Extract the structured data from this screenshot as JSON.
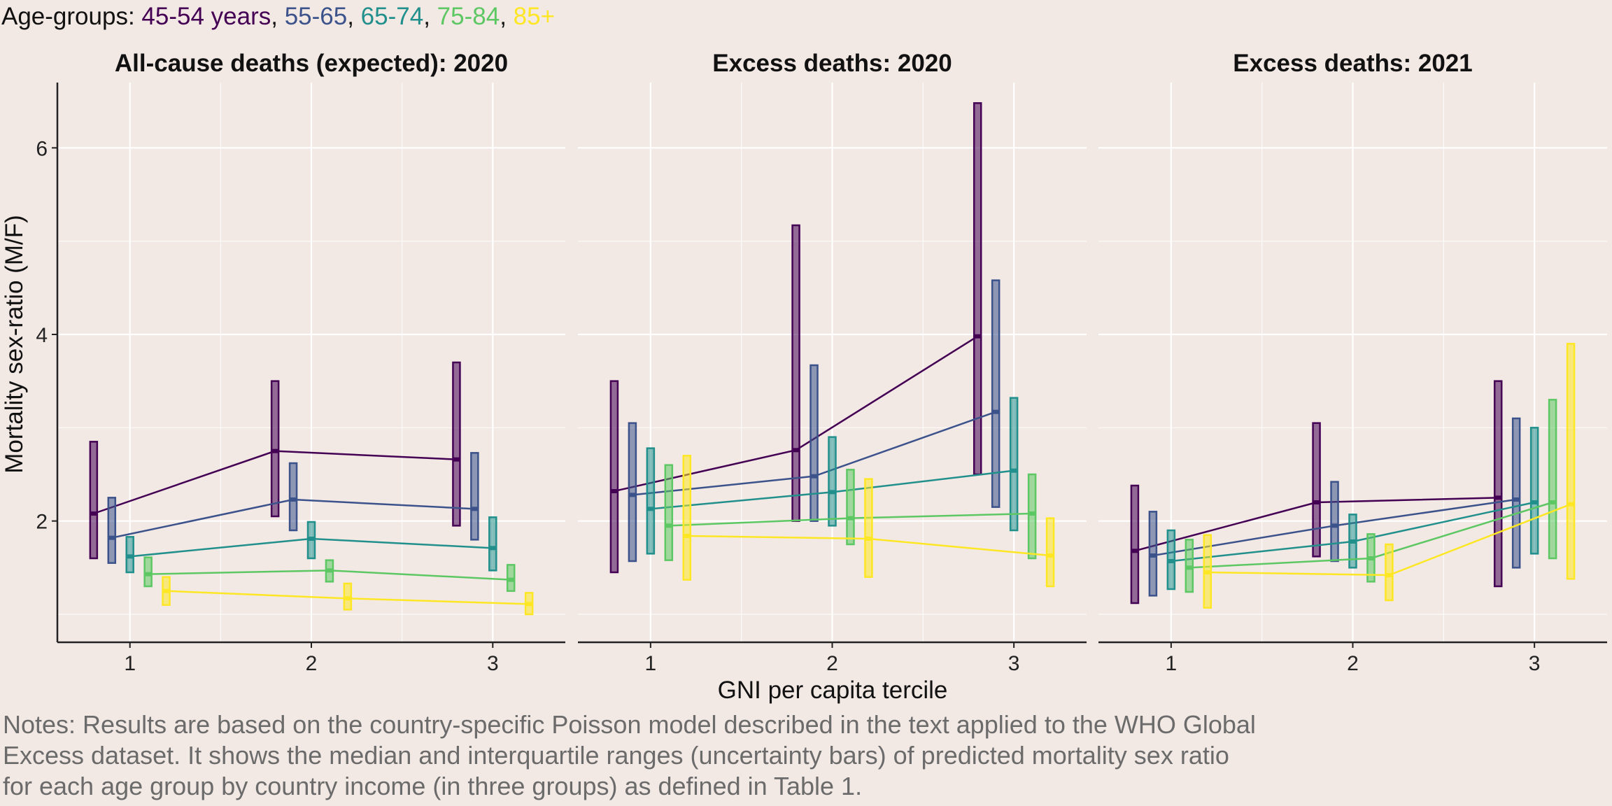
{
  "legend": {
    "label": "Age-groups: ",
    "groups": [
      {
        "text": "45-54 years",
        "color": "#440154"
      },
      {
        "text": "55-65",
        "color": "#3B528B"
      },
      {
        "text": "65-74",
        "color": "#21908C"
      },
      {
        "text": "75-84",
        "color": "#5DC863"
      },
      {
        "text": "85+",
        "color": "#FDE725"
      }
    ]
  },
  "notes": {
    "lines": [
      "Notes: Results are based on the country-specific Poisson model described in the text applied to the WHO Global",
      "Excess dataset. It shows the median and interquartile ranges (uncertainty bars) of predicted mortality sex ratio",
      "for each age group by country income (in three groups) as defined in Table 1."
    ]
  },
  "chart_data": {
    "type": "line",
    "xlabel": "GNI per capita tercile",
    "ylabel": "Mortality sex-ratio (M/F)",
    "x_ticks": [
      "1",
      "2",
      "3"
    ],
    "y_ticks": [
      2,
      4,
      6
    ],
    "ylim": [
      0.7,
      6.7
    ],
    "xlim": [
      0.6,
      3.4
    ],
    "grid": true,
    "legend_position": "top-left",
    "series_names": [
      "45-54 years",
      "55-65",
      "65-74",
      "75-84",
      "85+"
    ],
    "series_colors": [
      "#440154",
      "#3B528B",
      "#21908C",
      "#5DC863",
      "#FDE725"
    ],
    "dodge_offsets": [
      -0.2,
      -0.1,
      0,
      0.1,
      0.2
    ],
    "panels": [
      {
        "title": "All-cause deaths (expected): 2020",
        "series": [
          {
            "name": "45-54 years",
            "x": [
              1,
              2,
              3
            ],
            "median": [
              2.08,
              2.75,
              2.66
            ],
            "low": [
              1.6,
              2.05,
              1.95
            ],
            "high": [
              2.85,
              3.5,
              3.7
            ]
          },
          {
            "name": "55-65",
            "x": [
              1,
              2,
              3
            ],
            "median": [
              1.82,
              2.23,
              2.13
            ],
            "low": [
              1.55,
              1.9,
              1.8
            ],
            "high": [
              2.25,
              2.62,
              2.73
            ]
          },
          {
            "name": "65-74",
            "x": [
              1,
              2,
              3
            ],
            "median": [
              1.62,
              1.81,
              1.71
            ],
            "low": [
              1.45,
              1.6,
              1.47
            ],
            "high": [
              1.83,
              1.99,
              2.04
            ]
          },
          {
            "name": "75-84",
            "x": [
              1,
              2,
              3
            ],
            "median": [
              1.43,
              1.47,
              1.37
            ],
            "low": [
              1.3,
              1.35,
              1.25
            ],
            "high": [
              1.61,
              1.58,
              1.53
            ]
          },
          {
            "name": "85+",
            "x": [
              1,
              2,
              3
            ],
            "median": [
              1.25,
              1.17,
              1.11
            ],
            "low": [
              1.1,
              1.05,
              1.0
            ],
            "high": [
              1.4,
              1.33,
              1.23
            ]
          }
        ]
      },
      {
        "title": "Excess deaths: 2020",
        "series": [
          {
            "name": "45-54 years",
            "x": [
              1,
              2,
              3
            ],
            "median": [
              2.32,
              2.76,
              3.98
            ],
            "low": [
              1.45,
              2.0,
              2.5
            ],
            "high": [
              3.5,
              5.17,
              6.48
            ]
          },
          {
            "name": "55-65",
            "x": [
              1,
              2,
              3
            ],
            "median": [
              2.28,
              2.48,
              3.17
            ],
            "low": [
              1.57,
              2.0,
              2.15
            ],
            "high": [
              3.05,
              3.67,
              4.58
            ]
          },
          {
            "name": "65-74",
            "x": [
              1,
              2,
              3
            ],
            "median": [
              2.13,
              2.31,
              2.54
            ],
            "low": [
              1.65,
              1.95,
              1.9
            ],
            "high": [
              2.78,
              2.9,
              3.32
            ]
          },
          {
            "name": "75-84",
            "x": [
              1,
              2,
              3
            ],
            "median": [
              1.95,
              2.03,
              2.08
            ],
            "low": [
              1.58,
              1.75,
              1.6
            ],
            "high": [
              2.6,
              2.55,
              2.5
            ]
          },
          {
            "name": "85+",
            "x": [
              1,
              2,
              3
            ],
            "median": [
              1.84,
              1.81,
              1.63
            ],
            "low": [
              1.37,
              1.4,
              1.3
            ],
            "high": [
              2.7,
              2.45,
              2.03
            ]
          }
        ]
      },
      {
        "title": "Excess deaths: 2021",
        "series": [
          {
            "name": "45-54 years",
            "x": [
              1,
              2,
              3
            ],
            "median": [
              1.68,
              2.2,
              2.25
            ],
            "low": [
              1.12,
              1.62,
              1.3
            ],
            "high": [
              2.38,
              3.05,
              3.5
            ]
          },
          {
            "name": "55-65",
            "x": [
              1,
              2,
              3
            ],
            "median": [
              1.63,
              1.95,
              2.23
            ],
            "low": [
              1.2,
              1.57,
              1.5
            ],
            "high": [
              2.1,
              2.42,
              3.1
            ]
          },
          {
            "name": "65-74",
            "x": [
              1,
              2,
              3
            ],
            "median": [
              1.57,
              1.78,
              2.2
            ],
            "low": [
              1.27,
              1.5,
              1.65
            ],
            "high": [
              1.9,
              2.07,
              3.0
            ]
          },
          {
            "name": "75-84",
            "x": [
              1,
              2,
              3
            ],
            "median": [
              1.5,
              1.6,
              2.2
            ],
            "low": [
              1.24,
              1.35,
              1.6
            ],
            "high": [
              1.8,
              1.86,
              3.3
            ]
          },
          {
            "name": "85+",
            "x": [
              1,
              2,
              3
            ],
            "median": [
              1.45,
              1.42,
              2.18
            ],
            "low": [
              1.07,
              1.15,
              1.38
            ],
            "high": [
              1.85,
              1.75,
              3.9
            ]
          }
        ]
      }
    ]
  }
}
